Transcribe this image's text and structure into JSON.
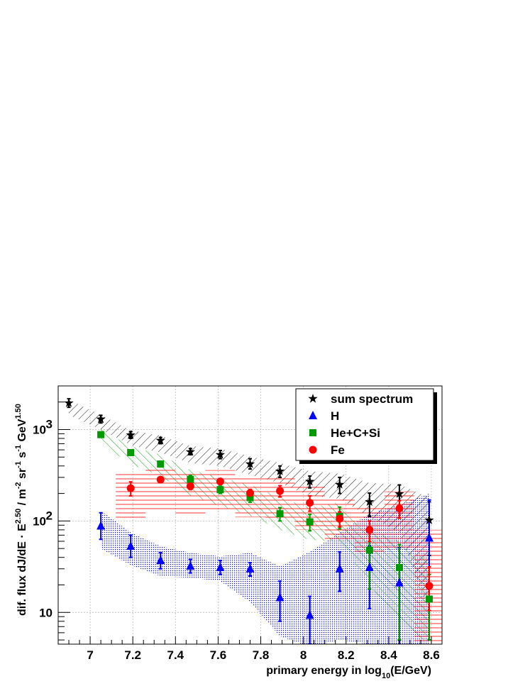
{
  "chart_data": {
    "type": "scatter",
    "xlabel": "primary energy in log",
    "xlabel_sub": "10",
    "xlabel_tail": "(E/GeV)",
    "ylabel_parts": {
      "prefix": "dif. flux dJ/dE · E",
      "exp1": "2.50",
      "mid": " / m",
      "exp2": "-2",
      "sr": " sr",
      "exp3": "-1",
      "s": " s",
      "exp4": "-1",
      "gev": " GeV",
      "exp5": "1.50"
    },
    "xlim": [
      6.85,
      8.65
    ],
    "ylim": [
      4.5,
      3000
    ],
    "yscale": "log",
    "grid": true,
    "legend_position": "top-right",
    "x_ticks": [
      "7",
      "7.2",
      "7.4",
      "7.6",
      "7.8",
      "8",
      "8.2",
      "8.4",
      "8.6"
    ],
    "x_tick_values": [
      7,
      7.2,
      7.4,
      7.6,
      7.8,
      8,
      8.2,
      8.4,
      8.6
    ],
    "y_tick_labels": [
      "10",
      "10",
      "10"
    ],
    "y_tick_exps": [
      "",
      "2",
      "3"
    ],
    "y_tick_values": [
      10,
      100,
      1000
    ],
    "series": [
      {
        "name": "sum spectrum",
        "color": "#000000",
        "marker": "star",
        "x": [
          6.9,
          7.05,
          7.19,
          7.33,
          7.47,
          7.61,
          7.75,
          7.89,
          8.03,
          8.17,
          8.31,
          8.45,
          8.59
        ],
        "y": [
          1950,
          1300,
          870,
          760,
          570,
          530,
          420,
          350,
          270,
          250,
          162,
          198,
          102
        ],
        "err_lo": [
          200,
          120,
          70,
          60,
          40,
          50,
          50,
          50,
          40,
          50,
          50,
          60,
          60
        ],
        "err_hi": [
          220,
          130,
          80,
          60,
          50,
          60,
          60,
          50,
          40,
          50,
          40,
          50,
          60
        ],
        "band_lo": [
          1450,
          1000,
          680,
          560,
          430,
          400,
          320,
          260,
          190,
          175,
          110,
          75,
          10
        ],
        "band_hi": [
          2100,
          1450,
          980,
          860,
          660,
          620,
          510,
          430,
          350,
          330,
          260,
          250,
          180
        ]
      },
      {
        "name": "H",
        "color": "#0000ff",
        "marker": "triangle",
        "x": [
          7.05,
          7.19,
          7.33,
          7.47,
          7.61,
          7.75,
          7.89,
          8.03,
          8.17,
          8.31,
          8.45,
          8.59
        ],
        "y": [
          88,
          53,
          37,
          32,
          31,
          30,
          14.5,
          9.3,
          30,
          31,
          21,
          65
        ],
        "err_lo": [
          25,
          13,
          7,
          5,
          5,
          5,
          6.5,
          4.8,
          13,
          20,
          17,
          60
        ],
        "err_hi": [
          35,
          17,
          8,
          6,
          6,
          5,
          7.5,
          5.7,
          16,
          22,
          30,
          105
        ],
        "band_lo": [
          50,
          33,
          25,
          24,
          22,
          13,
          5.5,
          4.2,
          5,
          4.5,
          4.5,
          4.5
        ],
        "band_hi": [
          130,
          75,
          53,
          45,
          41,
          45,
          32,
          46,
          75,
          120,
          150,
          200
        ]
      },
      {
        "name": "He+C+Si",
        "color": "#009900",
        "marker": "square",
        "x": [
          7.05,
          7.19,
          7.33,
          7.47,
          7.61,
          7.75,
          7.89,
          8.03,
          8.17,
          8.31,
          8.45,
          8.59
        ],
        "y": [
          880,
          560,
          420,
          285,
          220,
          180,
          120,
          98,
          112,
          48,
          31,
          14
        ],
        "err_lo": [
          50,
          40,
          30,
          30,
          20,
          20,
          20,
          20,
          30,
          30,
          26,
          9
        ],
        "err_hi": [
          50,
          40,
          30,
          30,
          20,
          20,
          20,
          20,
          30,
          30,
          24,
          12
        ],
        "band_lo": [
          700,
          420,
          310,
          190,
          145,
          115,
          80,
          62,
          60,
          20,
          8,
          4.5
        ],
        "band_hi": [
          1000,
          660,
          530,
          360,
          300,
          250,
          180,
          140,
          160,
          80,
          60,
          35
        ]
      },
      {
        "name": "Fe",
        "color": "#ff0000",
        "marker": "circle",
        "x": [
          7.19,
          7.33,
          7.47,
          7.61,
          7.75,
          7.89,
          8.03,
          8.17,
          8.31,
          8.45,
          8.59
        ],
        "y": [
          228,
          283,
          240,
          270,
          202,
          213,
          158,
          106,
          80,
          137,
          19.5
        ],
        "err_lo": [
          40,
          20,
          20,
          20,
          20,
          30,
          30,
          20,
          20,
          30,
          9
        ],
        "err_hi": [
          40,
          20,
          20,
          20,
          20,
          30,
          30,
          20,
          20,
          30,
          12
        ],
        "band_lo": [
          100,
          130,
          120,
          130,
          110,
          100,
          80,
          60,
          45,
          50,
          4.5
        ],
        "band_hi": [
          330,
          380,
          330,
          360,
          300,
          300,
          240,
          180,
          140,
          210,
          80
        ]
      }
    ]
  }
}
